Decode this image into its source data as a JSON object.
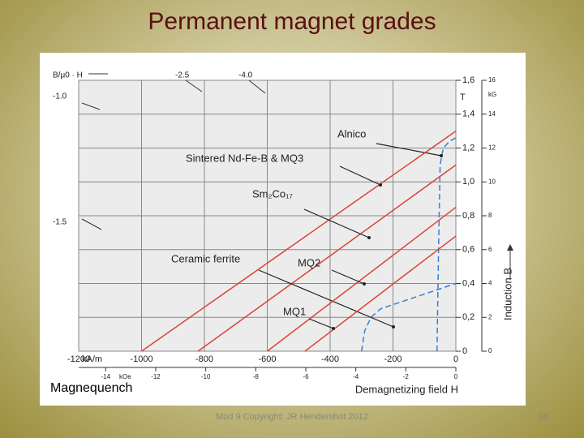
{
  "slide": {
    "title": "Permanent magnet grades",
    "footer": "Mod 9 Copyright: JR Hendershot 2012",
    "page_number": "98"
  },
  "chart_data": {
    "type": "line",
    "note": "Magnequench",
    "xlabel": "Demagnetizing field H",
    "ylabel": "Induction B",
    "x_unit": "kA/m",
    "x2_unit": "kOe",
    "y_unit": "T",
    "y2_unit": "kG",
    "xlim": [
      -1200,
      0
    ],
    "xticks": [
      -1200,
      -1000,
      -800,
      -600,
      -400,
      -200,
      0
    ],
    "x2lim": [
      -15.08,
      0
    ],
    "x2ticks": [
      -14,
      -12,
      -10,
      -8,
      -6,
      -4,
      -2,
      0
    ],
    "ylim": [
      0,
      1.6
    ],
    "yticks": [
      0,
      {
        "value": 0.2,
        "label": "0,2"
      },
      {
        "value": 0.4,
        "label": "0,4"
      },
      {
        "value": 0.6,
        "label": "0,6"
      },
      {
        "value": 0.8,
        "label": "0,8"
      },
      {
        "value": 1.0,
        "label": "1,0"
      },
      {
        "value": 1.2,
        "label": "1,2"
      },
      {
        "value": 1.4,
        "label": "1,4"
      },
      {
        "value": 1.6,
        "label": "1,6"
      }
    ],
    "y2lim": [
      0,
      16
    ],
    "y2ticks": [
      0,
      2,
      4,
      6,
      8,
      10,
      12,
      14,
      16
    ],
    "grid": true,
    "permeance_labels": [
      "B/μ0 · H",
      "-1.0",
      "-1.5",
      "-2.5",
      "-4.0"
    ],
    "series": [
      {
        "name": "Alnico",
        "color": "#3a7fd0",
        "dashed": true,
        "x": [
          -60,
          -55,
          -50,
          -40,
          -20,
          0
        ],
        "values": [
          0,
          0.6,
          1.1,
          1.2,
          1.24,
          1.26
        ]
      },
      {
        "name": "Sintered Nd-Fe-B & MQ3",
        "color": "#d9443a",
        "dashed": false,
        "x": [
          -1000,
          0
        ],
        "values": [
          0,
          1.3
        ]
      },
      {
        "name": "Sm₂Co₁₇",
        "color": "#d9443a",
        "dashed": false,
        "x": [
          -820,
          0
        ],
        "values": [
          0,
          1.1
        ]
      },
      {
        "name": "Ceramic ferrite",
        "color": "#3a7fd0",
        "dashed": true,
        "x": [
          -300,
          -290,
          -270,
          -240,
          0
        ],
        "values": [
          0,
          0.12,
          0.2,
          0.25,
          0.4
        ]
      },
      {
        "name": "MQ2",
        "color": "#d9443a",
        "dashed": false,
        "x": [
          -600,
          0
        ],
        "values": [
          0,
          0.85
        ]
      },
      {
        "name": "MQ1",
        "color": "#d9443a",
        "dashed": false,
        "x": [
          -480,
          0
        ],
        "values": [
          0,
          0.68
        ]
      }
    ]
  }
}
